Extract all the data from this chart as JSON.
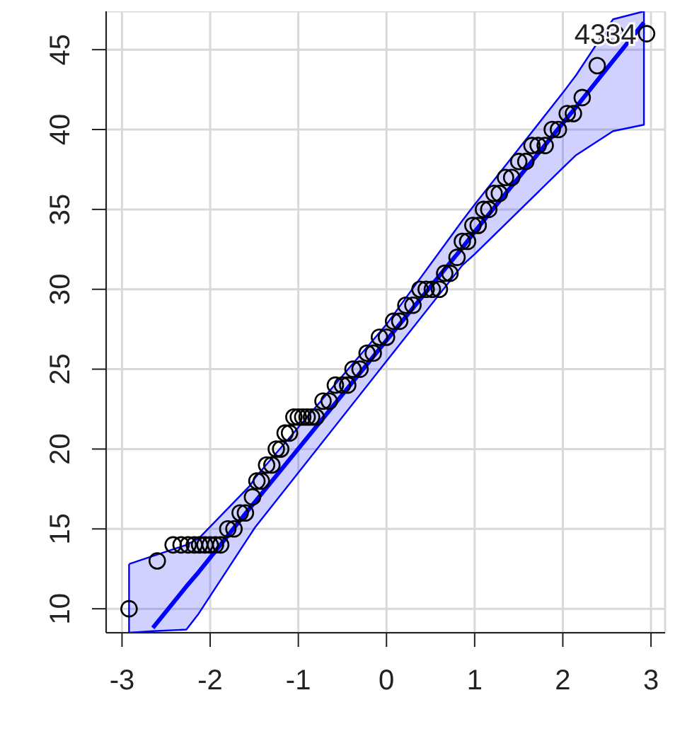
{
  "chart_data": {
    "type": "scatter",
    "xlim": [
      -3.18,
      3.16
    ],
    "ylim": [
      8.5,
      47.4
    ],
    "xticks": [
      -3,
      -2,
      -1,
      0,
      1,
      2,
      3
    ],
    "yticks": [
      10,
      15,
      20,
      25,
      30,
      35,
      40,
      45
    ],
    "grid": true,
    "legend": false,
    "annotations": [
      {
        "text": "43",
        "x": 2.6,
        "y": 46
      },
      {
        "text": "34",
        "x": 2.95,
        "y": 46
      }
    ],
    "series": [
      {
        "type": "line",
        "color": "#0000ff",
        "x": [
          -2.92,
          -2.65,
          -2.27,
          -2.13,
          -1.55,
          -1.49,
          0,
          0.86,
          1,
          2,
          2.15,
          2.57,
          2.92
        ],
        "values": [
          null,
          8.8,
          11.4,
          12.3,
          16.3,
          16.7,
          26.8,
          32.6,
          33.6,
          40.4,
          41.4,
          44.3,
          46.7
        ],
        "lower": [
          8.5,
          8.6,
          8.7,
          9.7,
          14.6,
          15.1,
          25.5,
          31.5,
          32.2,
          37.6,
          38.4,
          39.9,
          40.3
        ],
        "upper": [
          12.8,
          13.3,
          14.0,
          14.4,
          17.7,
          18.2,
          27.8,
          34.3,
          35.3,
          42.3,
          43.4,
          46.9,
          47.4
        ]
      },
      {
        "type": "line",
        "color": "#0000ff",
        "x": [
          -2.92,
          -2.65,
          -2.27,
          -2.13,
          -1.55,
          -1.49,
          0,
          0.86,
          1,
          2,
          2.15,
          2.57,
          2.92
        ],
        "values": [
          12.8,
          13.3,
          14.0,
          14.4,
          17.7,
          18.2,
          27.8,
          34.3,
          35.3,
          42.3,
          43.4,
          46.9,
          47.4
        ]
      },
      {
        "type": "line",
        "color": "#0000ff",
        "x": [
          -2.92,
          -2.92,
          -2.65,
          -2.27,
          -2.13,
          -1.55,
          -1.49,
          0,
          0.86,
          1,
          2,
          2.15,
          2.57,
          2.92,
          2.92
        ],
        "values": [
          12.8,
          8.5,
          8.6,
          8.7,
          9.7,
          14.6,
          15.1,
          25.5,
          31.5,
          32.2,
          37.6,
          38.4,
          39.9,
          40.3,
          47.4
        ]
      },
      {
        "color": "#000000",
        "marker": "circle",
        "x": [
          -2.92,
          -2.6,
          -2.42,
          -2.33,
          -2.25,
          -2.18,
          -2.12,
          -2.06,
          -2.0,
          -1.94,
          -1.88,
          -1.8,
          -1.73,
          -1.66,
          -1.6,
          -1.52,
          -1.47,
          -1.42,
          -1.36,
          -1.3,
          -1.25,
          -1.2,
          -1.15,
          -1.1,
          -1.05,
          -1.0,
          -0.95,
          -0.9,
          -0.85,
          -0.8,
          -0.72,
          -0.65,
          -0.58,
          -0.5,
          -0.44,
          -0.38,
          -0.3,
          -0.22,
          -0.15,
          -0.08,
          0,
          0.08,
          0.15,
          0.22,
          0.3,
          0.38,
          0.45,
          0.52,
          0.6,
          0.66,
          0.72,
          0.8,
          0.86,
          0.92,
          0.98,
          1.04,
          1.1,
          1.16,
          1.22,
          1.28,
          1.35,
          1.42,
          1.5,
          1.58,
          1.65,
          1.72,
          1.8,
          1.88,
          1.95,
          2.05,
          2.12,
          2.22,
          2.39,
          2.6,
          2.95
        ],
        "values": [
          10,
          13,
          14,
          14,
          14,
          14,
          14,
          14,
          14,
          14,
          14,
          15,
          15,
          16,
          16,
          17,
          18,
          18,
          19,
          19,
          20,
          20,
          21,
          21,
          22,
          22,
          22,
          22,
          22,
          22,
          23,
          23,
          24,
          24,
          24,
          25,
          25,
          26,
          26,
          27,
          27,
          28,
          28,
          29,
          29,
          30,
          30,
          30,
          30,
          31,
          31,
          32,
          33,
          33,
          34,
          34,
          35,
          35,
          36,
          36,
          37,
          37,
          38,
          38,
          39,
          39,
          39,
          40,
          40,
          41,
          41,
          42,
          44,
          46,
          46
        ]
      }
    ]
  }
}
